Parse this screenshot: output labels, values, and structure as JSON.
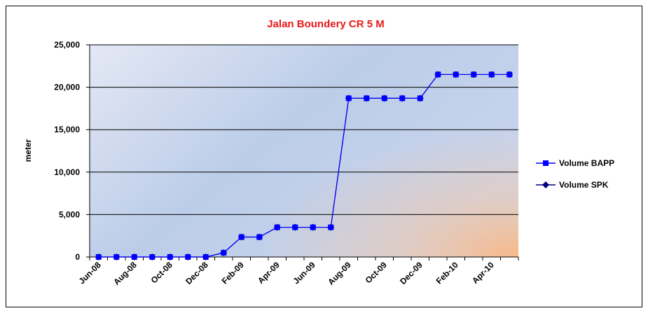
{
  "chart_data": {
    "type": "line",
    "title": "Jalan Boundery CR 5 M",
    "y_label": "meter",
    "categories": [
      "Jun-08",
      null,
      "Aug-08",
      null,
      "Oct-08",
      null,
      "Dec-08",
      null,
      "Feb-09",
      null,
      "Apr-09",
      null,
      "Jun-09",
      null,
      "Aug-09",
      null,
      "Oct-09",
      null,
      "Dec-09",
      null,
      "Feb-10",
      null,
      "Apr-10",
      null
    ],
    "series": [
      {
        "name": "Volume BAPP",
        "color": "#0000ff",
        "marker": "square",
        "values": [
          0,
          0,
          0,
          0,
          0,
          0,
          0,
          500,
          2350,
          2350,
          3500,
          3500,
          3500,
          3500,
          18700,
          18700,
          18700,
          18700,
          18700,
          21500,
          21500,
          21500,
          21500,
          21500
        ]
      },
      {
        "name": "Volume SPK",
        "color": "#000080",
        "marker": "diamond",
        "values": [
          0,
          0,
          0,
          0,
          0,
          0,
          0,
          500,
          2350,
          2350,
          3500,
          3500,
          3500,
          3500,
          18700,
          18700,
          18700,
          18700,
          18700,
          21500,
          21500,
          21500,
          21500,
          21500
        ]
      }
    ],
    "ylim": [
      0,
      25000
    ],
    "yticks": [
      0,
      {
        "value": 5000,
        "label": "5,000"
      },
      {
        "value": 10000,
        "label": "10,000"
      },
      {
        "value": 15000,
        "label": "15,000"
      },
      {
        "value": 20000,
        "label": "20,000"
      },
      {
        "value": 25000,
        "label": "25,000"
      }
    ],
    "grid": true,
    "legend": "right"
  }
}
